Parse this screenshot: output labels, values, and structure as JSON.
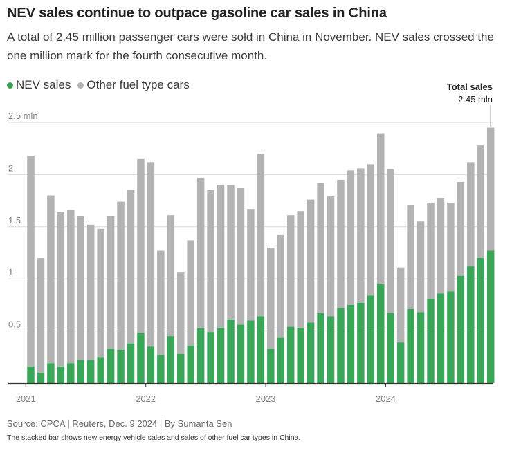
{
  "header": {
    "title": "NEV sales continue to outpace gasoline car sales in China",
    "subtitle": "A total of 2.45 million passenger cars were sold in China in November. NEV sales crossed the one million mark for the fourth consecutive month."
  },
  "legend": {
    "nev": "NEV sales",
    "other": "Other fuel type cars"
  },
  "annotation": {
    "label": "Total sales",
    "value": "2.45 mln"
  },
  "footer": {
    "source": "Source: CPCA | Reuters, Dec. 9 2024 | By Sumanta Sen",
    "note": "The stacked bar shows new energy vehicle sales and sales of other fuel car types in China."
  },
  "colors": {
    "nev": "#3aa657",
    "other": "#b3b3b3",
    "grid": "#d9d9d9",
    "axis": "#333333",
    "tick_text": "#808080"
  },
  "chart_data": {
    "type": "bar",
    "stacked": true,
    "unit": "million passenger cars",
    "ylim": [
      0,
      2.5
    ],
    "yticks": [
      0.5,
      1,
      1.5,
      2,
      2.5
    ],
    "ytick_labels": [
      "0.5",
      "1",
      "1.5",
      "2",
      "2.5 mln"
    ],
    "year_labels": [
      {
        "label": "2021",
        "index": 0
      },
      {
        "label": "2022",
        "index": 12
      },
      {
        "label": "2023",
        "index": 24
      },
      {
        "label": "2024",
        "index": 36
      }
    ],
    "categories": [
      "2021-01",
      "2021-02",
      "2021-03",
      "2021-04",
      "2021-05",
      "2021-06",
      "2021-07",
      "2021-08",
      "2021-09",
      "2021-10",
      "2021-11",
      "2021-12",
      "2022-01",
      "2022-02",
      "2022-03",
      "2022-04",
      "2022-05",
      "2022-06",
      "2022-07",
      "2022-08",
      "2022-09",
      "2022-10",
      "2022-11",
      "2022-12",
      "2023-01",
      "2023-02",
      "2023-03",
      "2023-04",
      "2023-05",
      "2023-06",
      "2023-07",
      "2023-08",
      "2023-09",
      "2023-10",
      "2023-11",
      "2023-12",
      "2024-01",
      "2024-02",
      "2024-03",
      "2024-04",
      "2024-05",
      "2024-06",
      "2024-07",
      "2024-08",
      "2024-09",
      "2024-10",
      "2024-11"
    ],
    "series": [
      {
        "name": "NEV sales",
        "values": [
          0.16,
          0.1,
          0.19,
          0.16,
          0.19,
          0.22,
          0.22,
          0.25,
          0.33,
          0.32,
          0.38,
          0.48,
          0.35,
          0.27,
          0.45,
          0.28,
          0.36,
          0.53,
          0.49,
          0.53,
          0.61,
          0.56,
          0.6,
          0.64,
          0.33,
          0.44,
          0.54,
          0.53,
          0.58,
          0.67,
          0.64,
          0.72,
          0.75,
          0.77,
          0.84,
          0.95,
          0.67,
          0.39,
          0.71,
          0.68,
          0.81,
          0.86,
          0.88,
          1.03,
          1.12,
          1.2,
          1.27
        ]
      },
      {
        "name": "Other fuel type cars",
        "values": [
          2.02,
          1.1,
          1.61,
          1.48,
          1.47,
          1.38,
          1.3,
          1.23,
          1.27,
          1.42,
          1.47,
          1.67,
          1.77,
          1.0,
          1.16,
          0.78,
          1.01,
          1.44,
          1.36,
          1.37,
          1.29,
          1.31,
          1.07,
          1.56,
          0.97,
          0.98,
          1.07,
          1.12,
          1.18,
          1.25,
          1.15,
          1.23,
          1.29,
          1.29,
          1.26,
          1.44,
          1.38,
          0.72,
          1.0,
          0.87,
          0.92,
          0.91,
          0.85,
          0.9,
          1.0,
          1.08,
          1.18
        ]
      }
    ],
    "total_last": 2.45
  }
}
